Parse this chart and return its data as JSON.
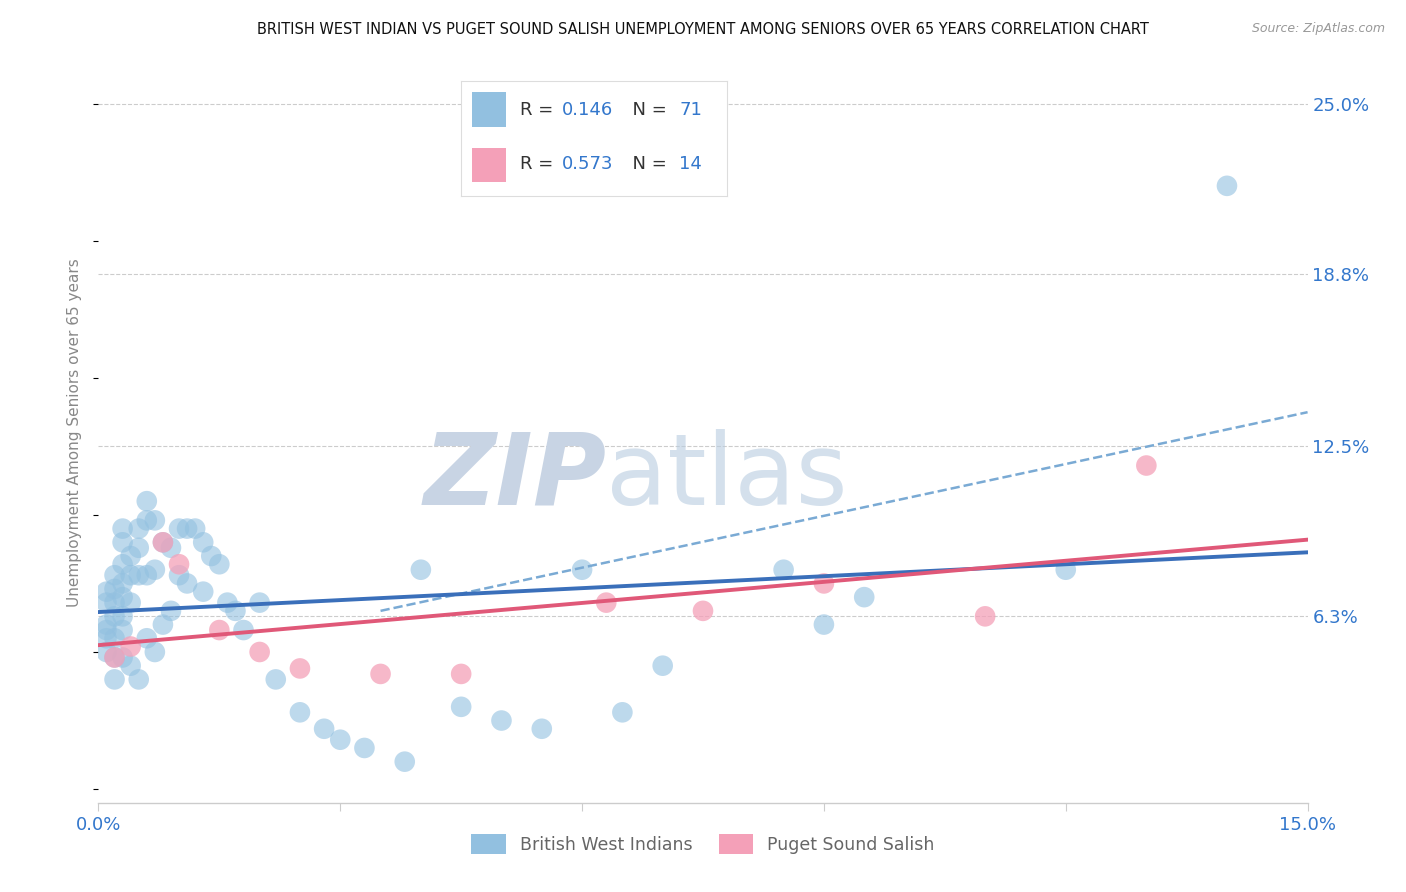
{
  "title": "BRITISH WEST INDIAN VS PUGET SOUND SALISH UNEMPLOYMENT AMONG SENIORS OVER 65 YEARS CORRELATION CHART",
  "source": "Source: ZipAtlas.com",
  "ylabel": "Unemployment Among Seniors over 65 years",
  "xlim": [
    0.0,
    0.15
  ],
  "ylim": [
    -0.005,
    0.265
  ],
  "yticks_right": [
    0.063,
    0.125,
    0.188,
    0.25
  ],
  "ytick_labels_right": [
    "6.3%",
    "12.5%",
    "18.8%",
    "25.0%"
  ],
  "xticks": [
    0.0,
    0.03,
    0.06,
    0.09,
    0.12,
    0.15
  ],
  "xtick_labels": [
    "0.0%",
    "",
    "",
    "",
    "",
    "15.0%"
  ],
  "r1": "0.146",
  "n1": "71",
  "r2": "0.573",
  "n2": "14",
  "blue_scatter_color": "#92c0e0",
  "blue_line_color": "#3a6fba",
  "blue_dash_color": "#7aaad4",
  "pink_scatter_color": "#f4a0b8",
  "pink_line_color": "#e05878",
  "label1": "British West Indians",
  "label2": "Puget Sound Salish",
  "blue_x": [
    0.001,
    0.001,
    0.001,
    0.001,
    0.001,
    0.001,
    0.002,
    0.002,
    0.002,
    0.002,
    0.002,
    0.002,
    0.002,
    0.003,
    0.003,
    0.003,
    0.003,
    0.003,
    0.003,
    0.003,
    0.003,
    0.004,
    0.004,
    0.004,
    0.004,
    0.005,
    0.005,
    0.005,
    0.005,
    0.006,
    0.006,
    0.006,
    0.006,
    0.007,
    0.007,
    0.007,
    0.008,
    0.008,
    0.009,
    0.009,
    0.01,
    0.01,
    0.011,
    0.011,
    0.012,
    0.013,
    0.013,
    0.014,
    0.015,
    0.016,
    0.017,
    0.018,
    0.02,
    0.022,
    0.025,
    0.028,
    0.03,
    0.033,
    0.038,
    0.04,
    0.045,
    0.05,
    0.055,
    0.06,
    0.065,
    0.07,
    0.085,
    0.09,
    0.095,
    0.12,
    0.14
  ],
  "blue_y": [
    0.068,
    0.072,
    0.06,
    0.058,
    0.055,
    0.05,
    0.078,
    0.073,
    0.068,
    0.063,
    0.055,
    0.048,
    0.04,
    0.095,
    0.09,
    0.082,
    0.075,
    0.07,
    0.063,
    0.058,
    0.048,
    0.085,
    0.078,
    0.068,
    0.045,
    0.095,
    0.088,
    0.078,
    0.04,
    0.105,
    0.098,
    0.078,
    0.055,
    0.098,
    0.08,
    0.05,
    0.09,
    0.06,
    0.088,
    0.065,
    0.095,
    0.078,
    0.095,
    0.075,
    0.095,
    0.09,
    0.072,
    0.085,
    0.082,
    0.068,
    0.065,
    0.058,
    0.068,
    0.04,
    0.028,
    0.022,
    0.018,
    0.015,
    0.01,
    0.08,
    0.03,
    0.025,
    0.022,
    0.08,
    0.028,
    0.045,
    0.08,
    0.06,
    0.07,
    0.08,
    0.22
  ],
  "pink_x": [
    0.002,
    0.004,
    0.008,
    0.01,
    0.015,
    0.02,
    0.025,
    0.035,
    0.045,
    0.063,
    0.075,
    0.09,
    0.11,
    0.13
  ],
  "pink_y": [
    0.048,
    0.052,
    0.09,
    0.082,
    0.058,
    0.05,
    0.044,
    0.042,
    0.042,
    0.068,
    0.065,
    0.075,
    0.063,
    0.118
  ],
  "background_color": "#ffffff",
  "grid_color": "#cccccc",
  "title_fontsize": 10.5,
  "tick_label_color": "#3377cc",
  "ylabel_color": "#888888"
}
